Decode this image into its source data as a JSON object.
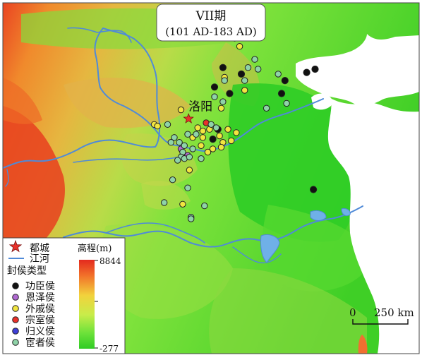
{
  "title": {
    "line1": "VII期",
    "line2": "(101 AD-183 AD)"
  },
  "capital": {
    "label": "洛阳",
    "lon": 112.45,
    "lat": 34.65
  },
  "legend": {
    "capital_label": "都城",
    "river_label": "江河",
    "category_title": "封侯类型",
    "categories": [
      {
        "key": "gongchen",
        "label": "功臣侯",
        "color": "#111111"
      },
      {
        "key": "enze",
        "label": "恩泽侯",
        "color": "#b06ad2"
      },
      {
        "key": "waiqi",
        "label": "外戚侯",
        "color": "#f2e640"
      },
      {
        "key": "zongshi",
        "label": "宗室侯",
        "color": "#e8312a"
      },
      {
        "key": "guiyi",
        "label": "归义侯",
        "color": "#3f3fd8"
      },
      {
        "key": "huanzhe",
        "label": "宦者侯",
        "color": "#8fd3a8"
      }
    ]
  },
  "elevation": {
    "title": "高程(m)",
    "max": "8844",
    "min": "-277"
  },
  "scale": {
    "zero": "0",
    "distance": "250 km"
  },
  "colors": {
    "capital_star": "#e8312a",
    "river": "#4f8ad8",
    "lake": "#6fb0e8"
  },
  "marquisates": [
    {
      "type": "gongchen",
      "lon": 114.5,
      "lat": 37.8
    },
    {
      "type": "gongchen",
      "lon": 115.6,
      "lat": 37.4
    },
    {
      "type": "gongchen",
      "lon": 114.9,
      "lat": 36.2
    },
    {
      "type": "gongchen",
      "lon": 118.2,
      "lat": 37.0
    },
    {
      "type": "gongchen",
      "lon": 119.5,
      "lat": 37.5
    },
    {
      "type": "gongchen",
      "lon": 120.0,
      "lat": 37.7
    },
    {
      "type": "gongchen",
      "lon": 114.2,
      "lat": 34.0
    },
    {
      "type": "gongchen",
      "lon": 113.9,
      "lat": 33.4
    },
    {
      "type": "gongchen",
      "lon": 114.0,
      "lat": 36.6
    },
    {
      "type": "gongchen",
      "lon": 119.9,
      "lat": 30.3
    },
    {
      "type": "gongchen",
      "lon": 118.0,
      "lat": 36.2
    },
    {
      "type": "waiqi",
      "lon": 115.5,
      "lat": 39.1
    },
    {
      "type": "waiqi",
      "lon": 114.6,
      "lat": 37.2
    },
    {
      "type": "waiqi",
      "lon": 115.8,
      "lat": 36.4
    },
    {
      "type": "waiqi",
      "lon": 114.4,
      "lat": 35.3
    },
    {
      "type": "waiqi",
      "lon": 112.0,
      "lat": 35.2
    },
    {
      "type": "waiqi",
      "lon": 110.4,
      "lat": 34.3
    },
    {
      "type": "waiqi",
      "lon": 110.6,
      "lat": 34.2
    },
    {
      "type": "waiqi",
      "lon": 113.0,
      "lat": 34.1
    },
    {
      "type": "waiqi",
      "lon": 113.3,
      "lat": 33.9
    },
    {
      "type": "waiqi",
      "lon": 113.7,
      "lat": 34.0
    },
    {
      "type": "waiqi",
      "lon": 114.3,
      "lat": 33.6
    },
    {
      "type": "waiqi",
      "lon": 114.8,
      "lat": 34.0
    },
    {
      "type": "waiqi",
      "lon": 115.0,
      "lat": 33.3
    },
    {
      "type": "waiqi",
      "lon": 114.5,
      "lat": 33.2
    },
    {
      "type": "waiqi",
      "lon": 113.2,
      "lat": 33.0
    },
    {
      "type": "waiqi",
      "lon": 112.7,
      "lat": 33.5
    },
    {
      "type": "waiqi",
      "lon": 113.6,
      "lat": 32.6
    },
    {
      "type": "waiqi",
      "lon": 113.9,
      "lat": 32.8
    },
    {
      "type": "waiqi",
      "lon": 113.3,
      "lat": 33.5
    },
    {
      "type": "waiqi",
      "lon": 112.5,
      "lat": 31.5
    },
    {
      "type": "waiqi",
      "lon": 114.4,
      "lat": 32.9
    },
    {
      "type": "waiqi",
      "lon": 115.3,
      "lat": 33.8
    },
    {
      "type": "waiqi",
      "lon": 112.1,
      "lat": 29.4
    },
    {
      "type": "enze",
      "lon": 112.0,
      "lat": 32.8
    },
    {
      "type": "enze",
      "lon": 112.4,
      "lat": 32.4
    },
    {
      "type": "zongshi",
      "lon": 113.5,
      "lat": 34.4
    },
    {
      "type": "huanzhe",
      "lon": 115.2,
      "lat": 40.0
    },
    {
      "type": "huanzhe",
      "lon": 115.2,
      "lat": 39.6
    },
    {
      "type": "huanzhe",
      "lon": 116.4,
      "lat": 38.3
    },
    {
      "type": "huanzhe",
      "lon": 116.0,
      "lat": 37.8
    },
    {
      "type": "huanzhe",
      "lon": 116.6,
      "lat": 37.7
    },
    {
      "type": "huanzhe",
      "lon": 115.8,
      "lat": 37.0
    },
    {
      "type": "huanzhe",
      "lon": 117.8,
      "lat": 37.4
    },
    {
      "type": "huanzhe",
      "lon": 114.6,
      "lat": 37.0
    },
    {
      "type": "huanzhe",
      "lon": 114.0,
      "lat": 36.0
    },
    {
      "type": "huanzhe",
      "lon": 114.5,
      "lat": 35.7
    },
    {
      "type": "huanzhe",
      "lon": 118.3,
      "lat": 35.6
    },
    {
      "type": "huanzhe",
      "lon": 117.1,
      "lat": 35.3
    },
    {
      "type": "huanzhe",
      "lon": 111.2,
      "lat": 34.3
    },
    {
      "type": "huanzhe",
      "lon": 111.6,
      "lat": 33.5
    },
    {
      "type": "huanzhe",
      "lon": 111.4,
      "lat": 33.2
    },
    {
      "type": "huanzhe",
      "lon": 111.9,
      "lat": 33.2
    },
    {
      "type": "huanzhe",
      "lon": 112.4,
      "lat": 33.7
    },
    {
      "type": "huanzhe",
      "lon": 112.2,
      "lat": 33.0
    },
    {
      "type": "huanzhe",
      "lon": 112.1,
      "lat": 32.6
    },
    {
      "type": "huanzhe",
      "lon": 112.0,
      "lat": 32.3
    },
    {
      "type": "huanzhe",
      "lon": 111.8,
      "lat": 32.1
    },
    {
      "type": "huanzhe",
      "lon": 112.2,
      "lat": 32.2
    },
    {
      "type": "huanzhe",
      "lon": 112.5,
      "lat": 32.3
    },
    {
      "type": "huanzhe",
      "lon": 112.9,
      "lat": 33.7
    },
    {
      "type": "huanzhe",
      "lon": 113.8,
      "lat": 34.3
    },
    {
      "type": "huanzhe",
      "lon": 114.1,
      "lat": 34.1
    },
    {
      "type": "huanzhe",
      "lon": 112.7,
      "lat": 32.8
    },
    {
      "type": "huanzhe",
      "lon": 113.2,
      "lat": 32.2
    },
    {
      "type": "huanzhe",
      "lon": 111.5,
      "lat": 30.9
    },
    {
      "type": "huanzhe",
      "lon": 112.4,
      "lat": 30.4
    },
    {
      "type": "huanzhe",
      "lon": 113.4,
      "lat": 29.3
    },
    {
      "type": "huanzhe",
      "lon": 111.0,
      "lat": 29.5
    },
    {
      "type": "huanzhe",
      "lon": 112.6,
      "lat": 28.6
    },
    {
      "type": "huanzhe",
      "lon": 112.6,
      "lat": 28.5
    }
  ]
}
